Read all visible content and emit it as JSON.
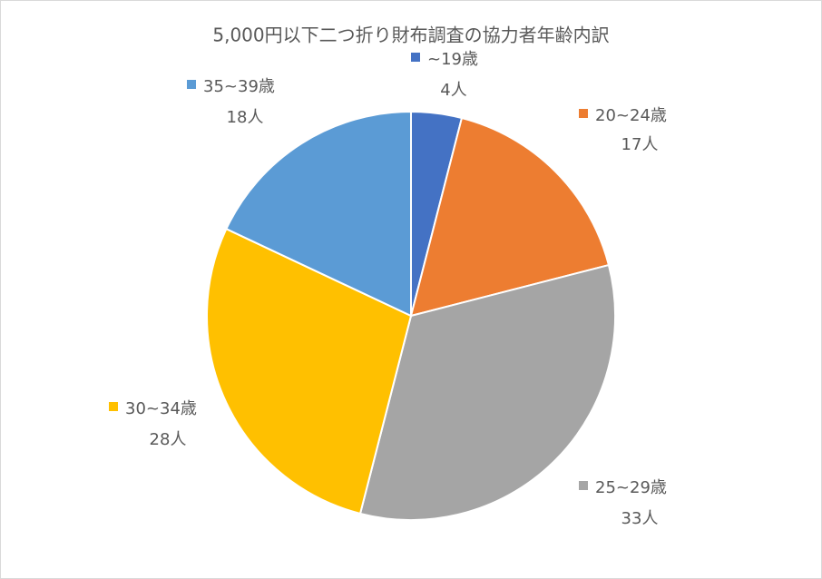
{
  "chart_data": {
    "type": "pie",
    "title": "5,000円以下二つ折り財布調査の協力者年齢内訳",
    "categories": [
      "~19歳",
      "20~24歳",
      "25~29歳",
      "30~34歳",
      "35~39歳"
    ],
    "values": [
      4,
      17,
      33,
      28,
      18
    ],
    "value_labels": [
      "4人",
      "17人",
      "33人",
      "28人",
      "18人"
    ],
    "colors": [
      "#4472c4",
      "#ed7d31",
      "#a5a5a5",
      "#ffc000",
      "#5b9bd5"
    ]
  }
}
